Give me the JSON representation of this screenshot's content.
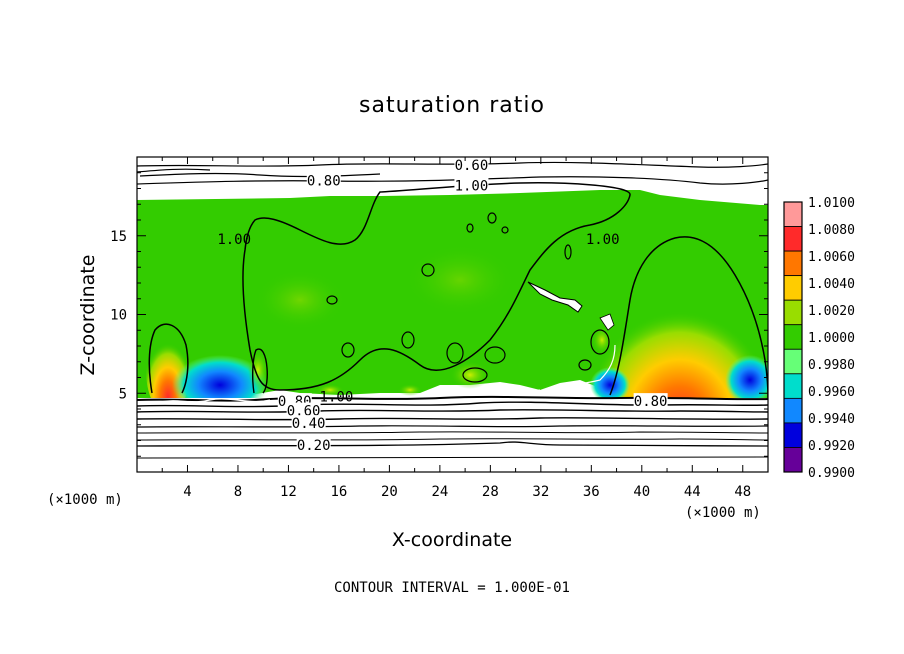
{
  "chart_data": {
    "type": "heatmap",
    "title": "saturation ratio",
    "xlabel": "X-coordinate",
    "ylabel": "Z-coordinate",
    "x_units_left": "(×1000 m)",
    "x_units_right": "(×1000 m)",
    "xlim": [
      0,
      50
    ],
    "ylim": [
      0,
      20
    ],
    "x_ticks": [
      "4",
      "8",
      "12",
      "16",
      "20",
      "24",
      "28",
      "32",
      "36",
      "40",
      "44",
      "48"
    ],
    "y_ticks": [
      "5",
      "10",
      "15"
    ],
    "footer": "CONTOUR INTERVAL = 1.000E-01",
    "colorbar": {
      "labels": [
        "1.0100",
        "1.0080",
        "1.0060",
        "1.0040",
        "1.0020",
        "1.0000",
        "0.9980",
        "0.9960",
        "0.9940",
        "0.9920",
        "0.9900"
      ],
      "colors": [
        "#ff9999",
        "#ff2a2a",
        "#ff7700",
        "#ffcc00",
        "#99dd00",
        "#33cc00",
        "#66ff77",
        "#00ddcc",
        "#1188ff",
        "#0000dd",
        "#660099"
      ]
    },
    "contour_labels": [
      {
        "text": "0.60",
        "x": 26.5,
        "z": 19.5
      },
      {
        "text": "0.80",
        "x": 14.8,
        "z": 18.5
      },
      {
        "text": "1.00",
        "x": 26.5,
        "z": 18.2
      },
      {
        "text": "1.00",
        "x": 7.7,
        "z": 14.8
      },
      {
        "text": "1.00",
        "x": 36.9,
        "z": 14.8
      },
      {
        "text": "1.00",
        "x": 15.8,
        "z": 4.8
      },
      {
        "text": "0.80",
        "x": 12.5,
        "z": 4.5
      },
      {
        "text": "0.60",
        "x": 13.2,
        "z": 3.9
      },
      {
        "text": "0.40",
        "x": 13.6,
        "z": 3.1
      },
      {
        "text": "0.20",
        "x": 14.0,
        "z": 1.7
      },
      {
        "text": "0.80",
        "x": 40.7,
        "z": 4.5
      }
    ]
  }
}
